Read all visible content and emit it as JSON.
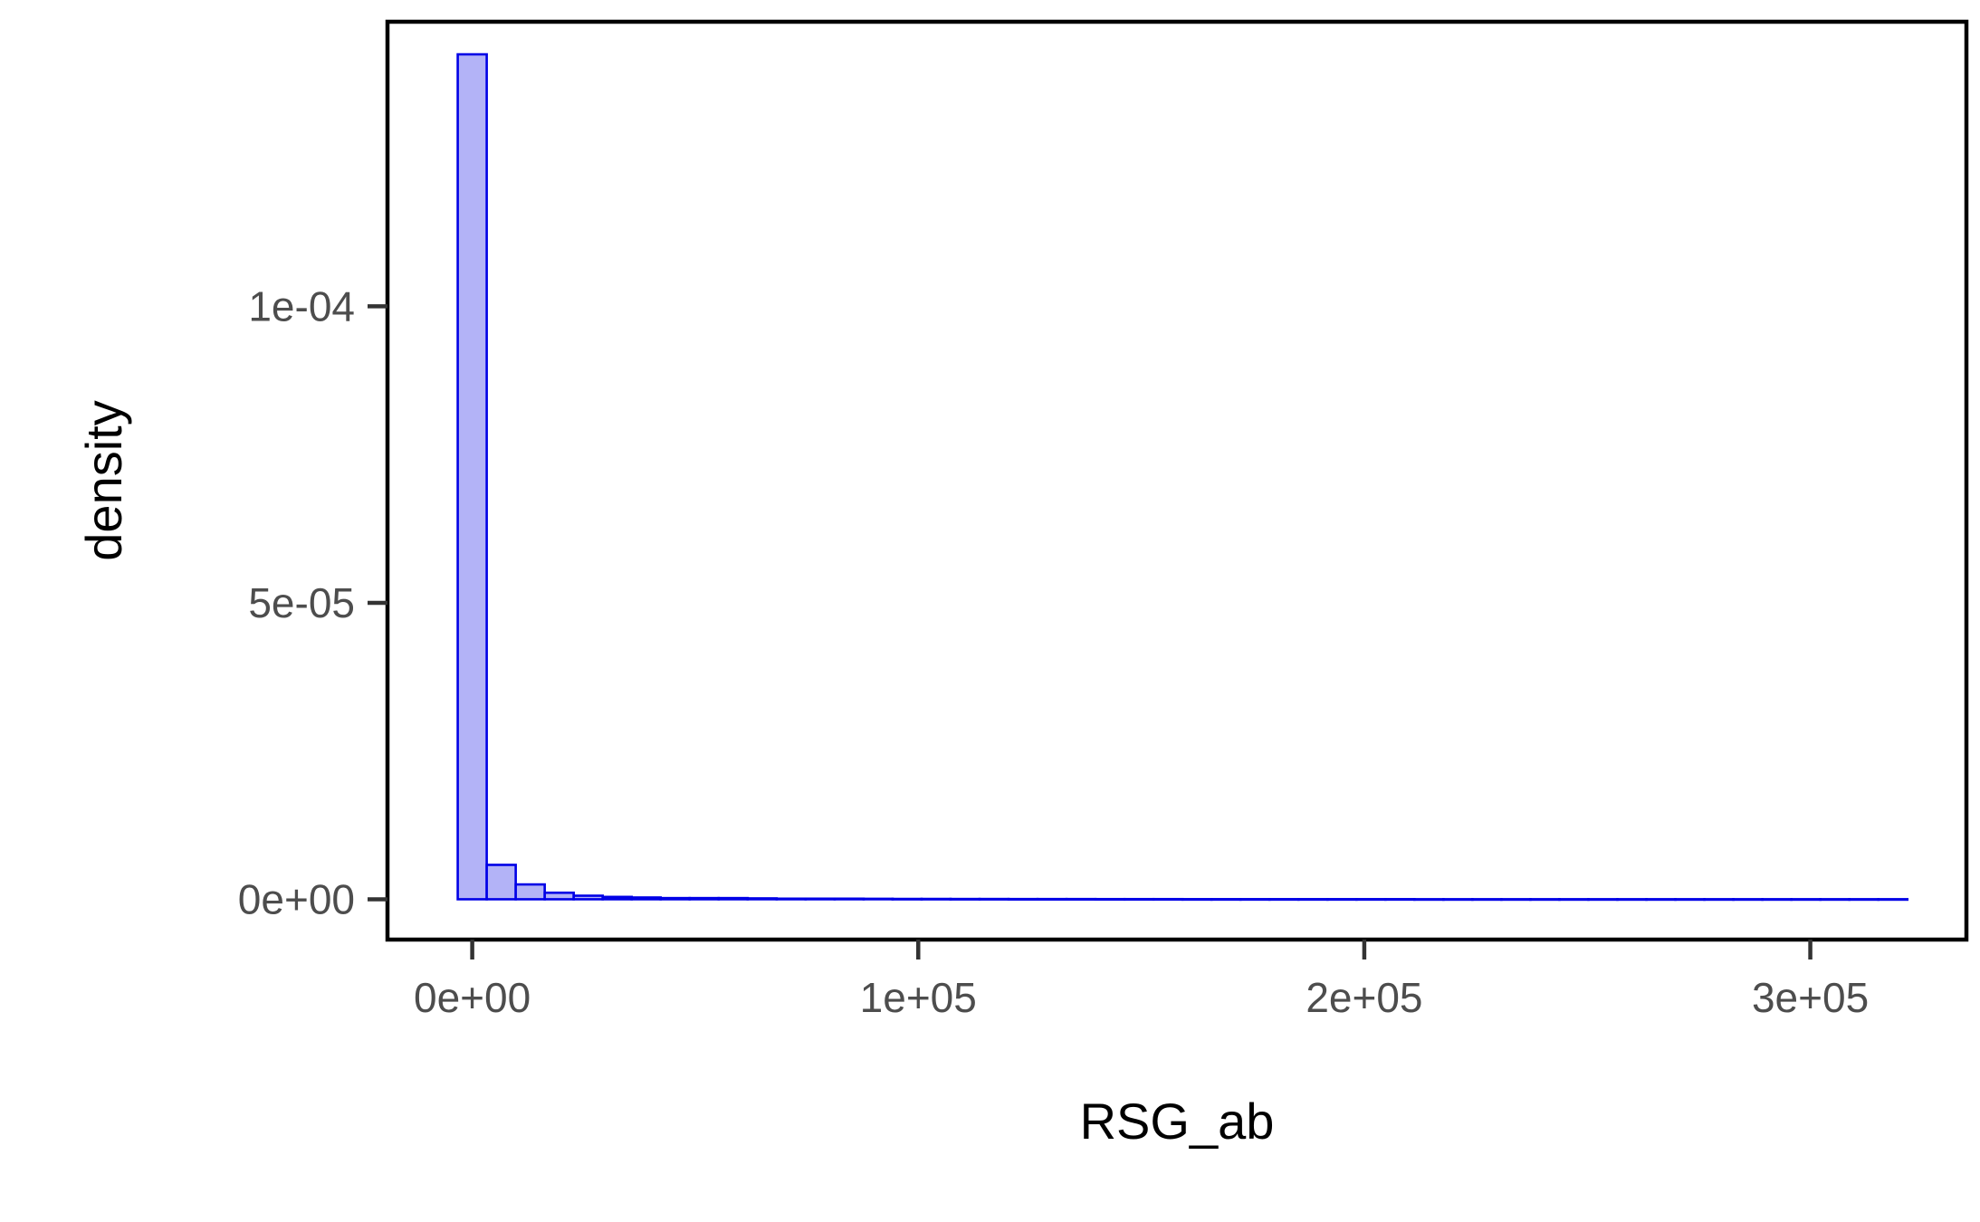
{
  "chart_data": {
    "type": "bar",
    "subtype": "histogram",
    "title": "",
    "xlabel": "RSG_ab",
    "ylabel": "density",
    "xlim": [
      -19000,
      335000
    ],
    "ylim": [
      -6.8e-06,
      0.000148
    ],
    "x_ticks": [
      {
        "value": 0,
        "label": "0e+00"
      },
      {
        "value": 100000,
        "label": "1e+05"
      },
      {
        "value": 200000,
        "label": "2e+05"
      },
      {
        "value": 300000,
        "label": "3e+05"
      }
    ],
    "y_ticks": [
      {
        "value": 0,
        "label": "0e+00"
      },
      {
        "value": 5e-05,
        "label": "5e-05"
      },
      {
        "value": 0.0001,
        "label": "1e-04"
      }
    ],
    "bins": {
      "start": -3250,
      "width": 6500,
      "densities": [
        0.0001425,
        5.8e-06,
        2.5e-06,
        1.1e-06,
        6e-07,
        4e-07,
        3e-07,
        2e-07,
        2e-07,
        2e-07,
        1.5e-07,
        1e-07,
        1e-07,
        1e-07,
        8e-08,
        6e-08,
        6e-08,
        5e-08,
        5e-08,
        4e-08,
        4e-08,
        4e-08,
        3e-08,
        3e-08,
        3e-08,
        2e-08,
        2e-08,
        2e-08,
        2e-08,
        2e-08,
        2e-08,
        2e-08,
        2e-08,
        1e-08,
        1e-08,
        1e-08,
        1e-08,
        1e-08,
        1e-08,
        1e-08,
        1e-08,
        1e-08,
        1e-08,
        1e-08,
        1e-08,
        1e-08,
        1e-08,
        1e-08,
        1e-08,
        1e-08
      ]
    },
    "fill_color": "#b3b3f7",
    "stroke_color": "#0000e6",
    "grid": false,
    "legend": "none"
  }
}
